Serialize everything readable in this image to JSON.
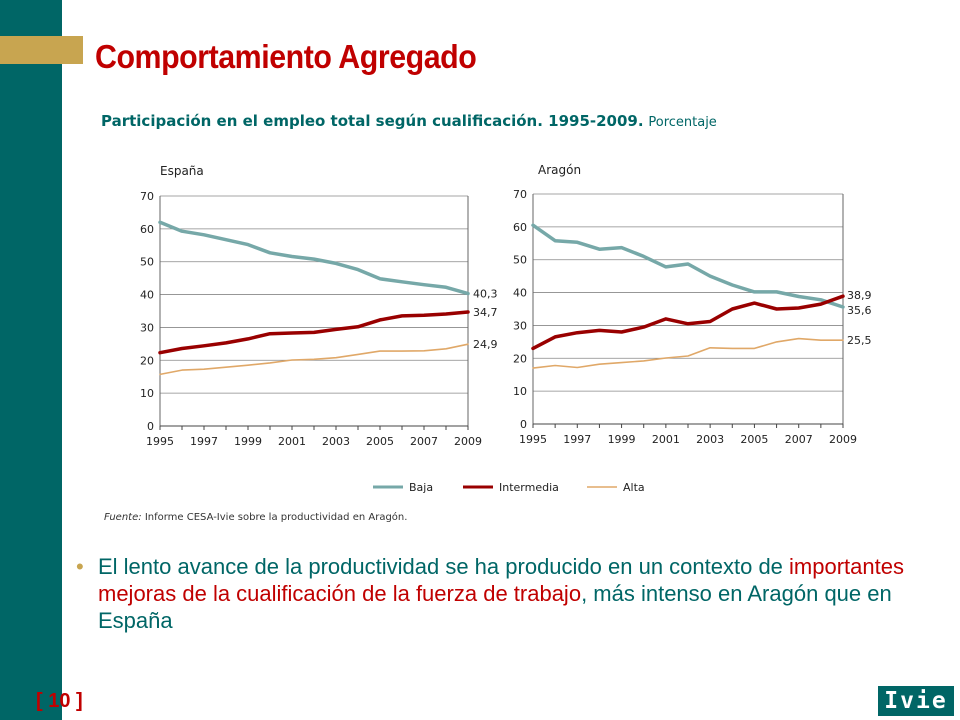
{
  "slide": {
    "title": "Comportamiento Agregado",
    "subtitle_bold": "Participación en el empleo total según cualificación. 1995-2009.",
    "subtitle_light": "Porcentaje",
    "source_label": "Fuente:",
    "source_text": "Informe CESA-Ivie sobre la productividad en Aragón.",
    "bullet_part1": "El lento avance de la productividad se ha producido en un contexto de ",
    "bullet_highlight": "importantes mejoras de la cualificación de la fuerza de trabajo",
    "bullet_part2": ", más intenso en Aragón que en España",
    "page_number": "[ 10 ]",
    "logo_text": "Ivie",
    "colors": {
      "sidebar": "#006666",
      "accent": "#c8a550",
      "title": "#c00000"
    }
  },
  "chart_data": [
    {
      "type": "line",
      "title": "España",
      "x": [
        1995,
        1996,
        1997,
        1998,
        1999,
        2000,
        2001,
        2002,
        2003,
        2004,
        2005,
        2006,
        2007,
        2008,
        2009
      ],
      "xticks": [
        "1995",
        "1997",
        "1999",
        "2001",
        "2003",
        "2005",
        "2007",
        "2009"
      ],
      "yticks": [
        "0",
        "10",
        "20",
        "30",
        "40",
        "50",
        "60",
        "70"
      ],
      "ylim": [
        0,
        70
      ],
      "series": [
        {
          "name": "Baja",
          "color": "#76a8a8",
          "values": [
            62.0,
            59.3,
            58.2,
            56.7,
            55.2,
            52.7,
            51.6,
            50.8,
            49.5,
            47.6,
            44.8,
            43.9,
            43.0,
            42.2,
            40.3
          ],
          "end_label": "40,3"
        },
        {
          "name": "Intermedia",
          "color": "#990000",
          "values": [
            22.3,
            23.6,
            24.4,
            25.3,
            26.5,
            28.1,
            28.3,
            28.5,
            29.4,
            30.2,
            32.3,
            33.5,
            33.7,
            34.1,
            34.7
          ],
          "end_label": "34,7"
        },
        {
          "name": "Alta",
          "color": "#e0a868",
          "values": [
            15.7,
            17.0,
            17.3,
            17.9,
            18.5,
            19.2,
            20.1,
            20.3,
            20.8,
            21.8,
            22.8,
            22.8,
            22.9,
            23.5,
            24.9
          ],
          "end_label": "24,9"
        }
      ]
    },
    {
      "type": "line",
      "title": "Aragón",
      "x": [
        1995,
        1996,
        1997,
        1998,
        1999,
        2000,
        2001,
        2002,
        2003,
        2004,
        2005,
        2006,
        2007,
        2008,
        2009
      ],
      "xticks": [
        "1995",
        "1997",
        "1999",
        "2001",
        "2003",
        "2005",
        "2007",
        "2009"
      ],
      "yticks": [
        "0",
        "10",
        "20",
        "30",
        "40",
        "50",
        "60",
        "70"
      ],
      "ylim": [
        0,
        70
      ],
      "series": [
        {
          "name": "Baja",
          "color": "#76a8a8",
          "values": [
            60.5,
            55.8,
            55.3,
            53.2,
            53.7,
            51.0,
            47.8,
            48.7,
            45.0,
            42.3,
            40.2,
            40.2,
            38.8,
            37.8,
            35.6
          ],
          "end_label": "35,6"
        },
        {
          "name": "Intermedia",
          "color": "#990000",
          "values": [
            23.0,
            26.5,
            27.8,
            28.5,
            28.0,
            29.5,
            32.0,
            30.5,
            31.2,
            35.0,
            36.8,
            35.0,
            35.3,
            36.5,
            38.9
          ],
          "end_label": "38,9"
        },
        {
          "name": "Alta",
          "color": "#e0a868",
          "values": [
            17.0,
            17.8,
            17.2,
            18.2,
            18.7,
            19.2,
            20.1,
            20.7,
            23.2,
            23.0,
            23.0,
            25.0,
            26.0,
            25.5,
            25.5
          ],
          "end_label": "25,5"
        }
      ]
    }
  ],
  "legend": [
    {
      "name": "Baja",
      "color": "#76a8a8",
      "width": 3
    },
    {
      "name": "Intermedia",
      "color": "#990000",
      "width": 3
    },
    {
      "name": "Alta",
      "color": "#e0a868",
      "width": 1.5
    }
  ]
}
